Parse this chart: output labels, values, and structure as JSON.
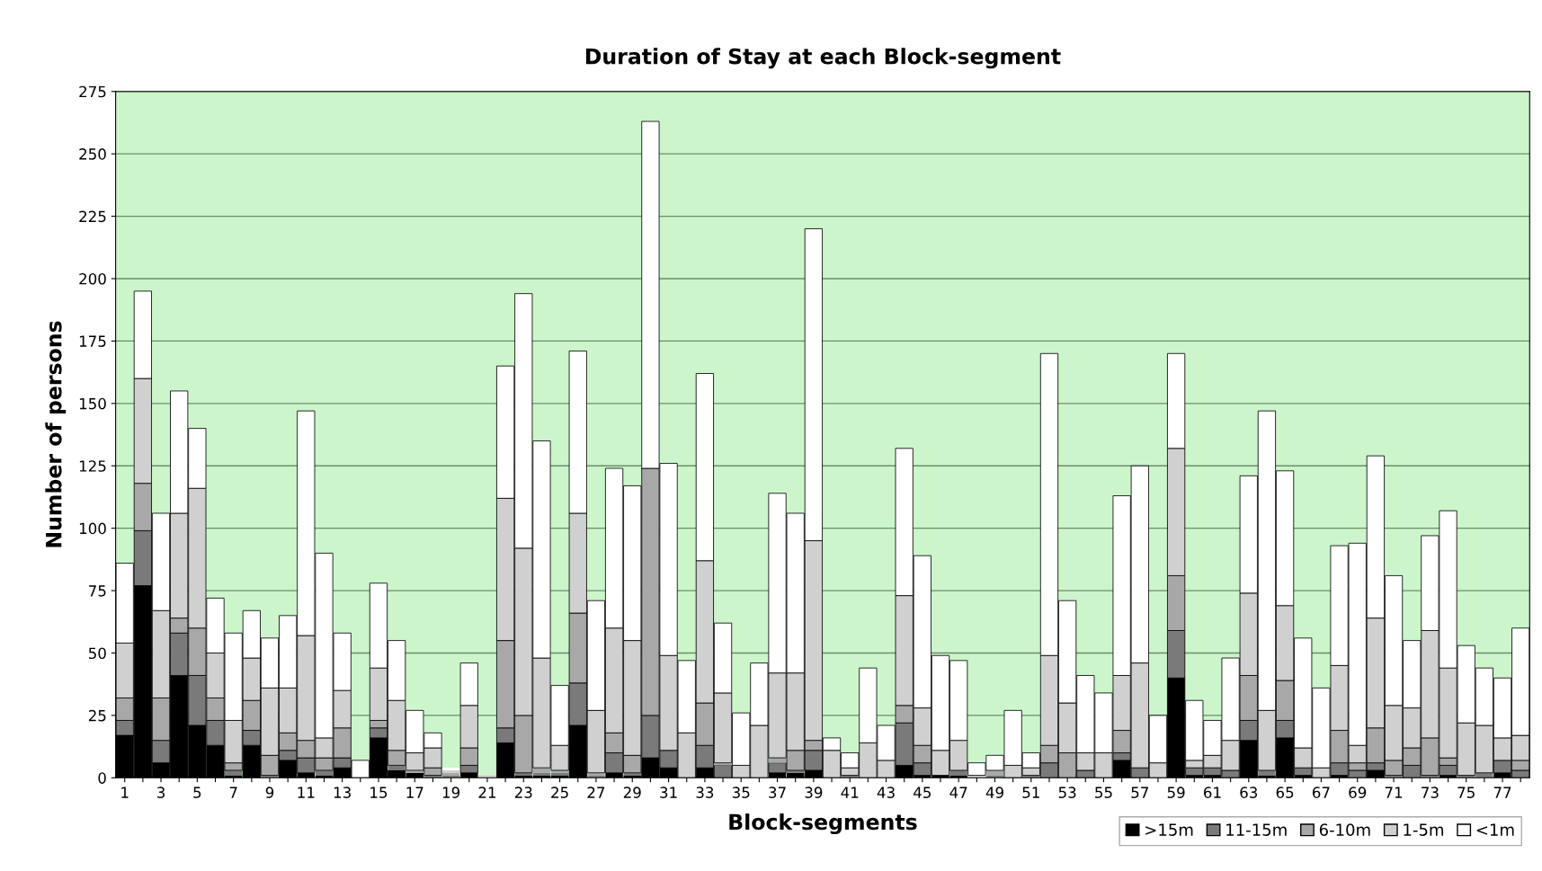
{
  "chart_data": {
    "type": "bar",
    "stacked": true,
    "title": "Duration of Stay at each Block-segment",
    "xlabel": "Block-segments",
    "ylabel": "Number of persons",
    "categories": [
      "1",
      null,
      "3",
      null,
      "5",
      null,
      "7",
      null,
      "9",
      null,
      "11",
      null,
      "13",
      null,
      "15",
      null,
      "17",
      null,
      "19",
      null,
      "21",
      null,
      "23",
      null,
      "25",
      null,
      "27",
      null,
      "29",
      null,
      "31",
      null,
      "33",
      null,
      "35",
      null,
      "37",
      null,
      "39",
      null,
      "41",
      null,
      "43",
      null,
      "45",
      null,
      "47",
      null,
      "49",
      null,
      "51",
      null,
      "53",
      null,
      "55",
      null,
      "57",
      null,
      "59",
      null,
      "61",
      null,
      "63",
      null,
      "65",
      null,
      "67",
      null,
      "69",
      null,
      "71",
      null,
      "73",
      null,
      "75",
      null,
      "77",
      null
    ],
    "series": [
      {
        "name": ">15m",
        "color": "#000000",
        "values": [
          17,
          77,
          6,
          41,
          21,
          13,
          1,
          13,
          0,
          7,
          2,
          1,
          4,
          0,
          16,
          3,
          2,
          0,
          0,
          2,
          0,
          14,
          1,
          1,
          1,
          21,
          0,
          2,
          1,
          8,
          4,
          0,
          4,
          0,
          0,
          0,
          2,
          2,
          3,
          0,
          0,
          0,
          0,
          5,
          1,
          1,
          1,
          0,
          0,
          0,
          0,
          0,
          0,
          0,
          0,
          7,
          0,
          0,
          40,
          1,
          1,
          0,
          15,
          1,
          16,
          1,
          0,
          1,
          0,
          3,
          0,
          0,
          0,
          1,
          0,
          0,
          2,
          0
        ]
      },
      {
        "name": "11-15m",
        "color": "#7a7a7a",
        "values": [
          6,
          22,
          9,
          17,
          20,
          10,
          2,
          6,
          1,
          4,
          6,
          2,
          4,
          0,
          4,
          2,
          0,
          1,
          1,
          3,
          0,
          6,
          1,
          1,
          1,
          17,
          1,
          8,
          1,
          17,
          7,
          0,
          9,
          5,
          0,
          0,
          4,
          1,
          8,
          0,
          1,
          0,
          0,
          17,
          5,
          0,
          2,
          0,
          1,
          0,
          1,
          6,
          0,
          3,
          0,
          3,
          4,
          0,
          19,
          3,
          3,
          3,
          8,
          2,
          7,
          3,
          0,
          5,
          3,
          3,
          1,
          5,
          1,
          4,
          1,
          2,
          5,
          3
        ]
      },
      {
        "name": "6-10m",
        "color": "#a8a8a8",
        "values": [
          9,
          19,
          17,
          6,
          19,
          9,
          3,
          12,
          8,
          7,
          7,
          5,
          12,
          0,
          3,
          6,
          1,
          3,
          1,
          7,
          0,
          35,
          23,
          2,
          1,
          28,
          1,
          8,
          7,
          99,
          0,
          0,
          17,
          1,
          0,
          0,
          2,
          8,
          4,
          0,
          0,
          0,
          0,
          7,
          7,
          0,
          0,
          0,
          2,
          0,
          0,
          7,
          10,
          0,
          0,
          9,
          0,
          0,
          22,
          0,
          0,
          0,
          18,
          0,
          16,
          0,
          0,
          13,
          3,
          14,
          6,
          7,
          15,
          3,
          0,
          0,
          0,
          4
        ]
      },
      {
        "name": "1-5m",
        "color": "#d0d0d0",
        "values": [
          22,
          42,
          35,
          42,
          56,
          18,
          17,
          17,
          27,
          18,
          42,
          8,
          15,
          0,
          21,
          20,
          7,
          8,
          1,
          17,
          1,
          57,
          67,
          44,
          10,
          40,
          25,
          42,
          46,
          0,
          38,
          18,
          57,
          28,
          5,
          21,
          34,
          31,
          80,
          11,
          3,
          14,
          7,
          44,
          15,
          10,
          12,
          1,
          0,
          5,
          3,
          36,
          20,
          7,
          10,
          22,
          42,
          6,
          51,
          3,
          5,
          12,
          33,
          24,
          30,
          8,
          4,
          26,
          7,
          44,
          22,
          16,
          43,
          36,
          21,
          19,
          9,
          10
        ]
      },
      {
        "name": "<1m",
        "color": "#ffffff",
        "values": [
          32,
          35,
          39,
          49,
          24,
          22,
          35,
          19,
          20,
          29,
          90,
          74,
          23,
          7,
          34,
          24,
          17,
          6,
          1,
          17,
          0,
          53,
          102,
          87,
          24,
          65,
          44,
          64,
          62,
          139,
          77,
          29,
          75,
          28,
          21,
          25,
          72,
          64,
          125,
          5,
          6,
          30,
          14,
          59,
          61,
          38,
          32,
          5,
          6,
          22,
          6,
          121,
          41,
          31,
          24,
          72,
          79,
          19,
          38,
          24,
          14,
          33,
          47,
          120,
          54,
          44,
          32,
          48,
          81,
          65,
          52,
          27,
          38,
          63,
          31,
          23,
          24,
          43
        ]
      }
    ],
    "ylim": [
      0,
      275
    ],
    "yticks": [
      0,
      25,
      50,
      75,
      100,
      125,
      150,
      175,
      200,
      225,
      250,
      275
    ],
    "grid": "y",
    "legend": "bottom right"
  }
}
